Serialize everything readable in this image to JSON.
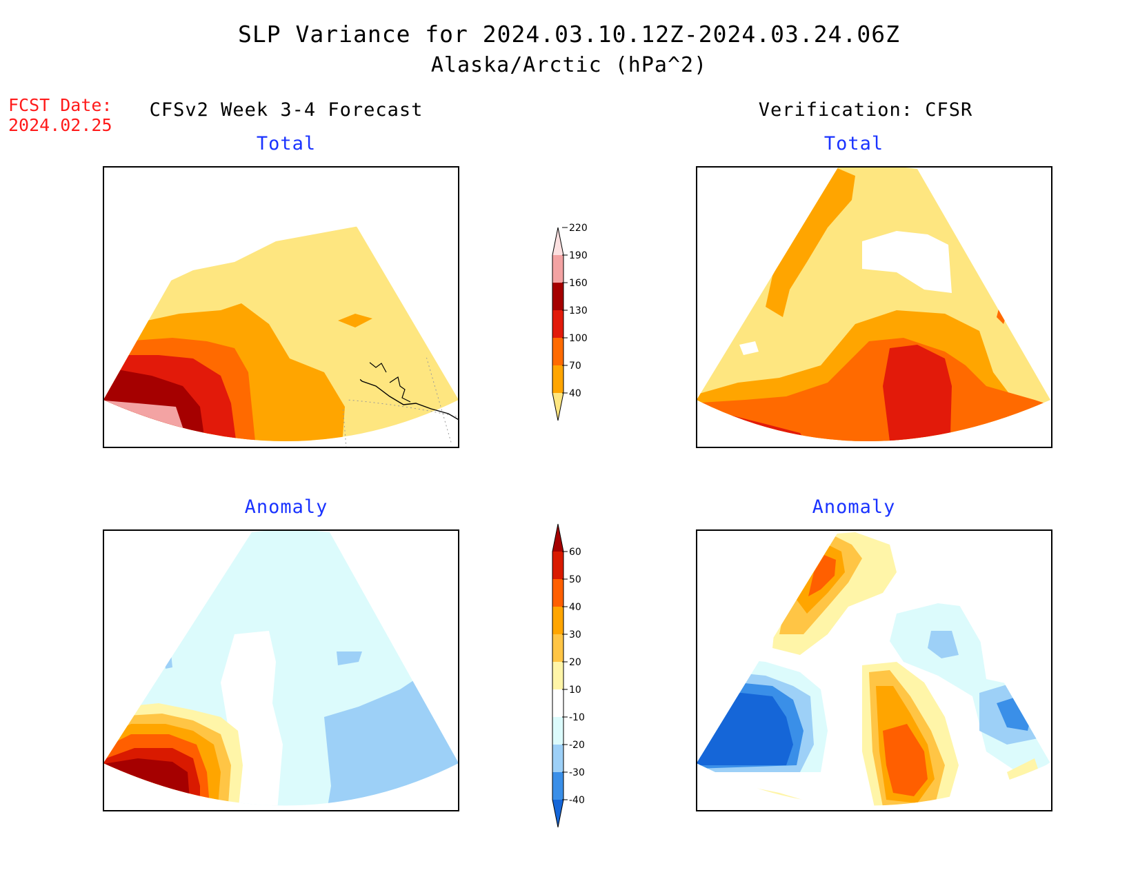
{
  "header": {
    "title": "SLP Variance for 2024.03.10.12Z-2024.03.24.06Z",
    "subtitle": "Alaska/Arctic (hPa^2)",
    "fcst_label": "FCST Date:",
    "fcst_date": "2024.02.25",
    "left_column": "CFSv2 Week 3-4 Forecast",
    "right_column": "Verification: CFSR"
  },
  "panels": {
    "fcst_total": "Total",
    "verif_total": "Total",
    "fcst_anomaly": "Anomaly",
    "verif_anomaly": "Anomaly"
  },
  "legends": {
    "total": {
      "ticks": [
        "40",
        "70",
        "100",
        "130",
        "160",
        "190",
        "220"
      ],
      "colors": [
        "#fee680",
        "#ffa500",
        "#ff6a00",
        "#e21a0a",
        "#a50000",
        "#f3a3a3",
        "#fce0e0"
      ]
    },
    "anomaly": {
      "ticks": [
        "-40",
        "-30",
        "-20",
        "-10",
        "10",
        "20",
        "30",
        "40",
        "50",
        "60"
      ],
      "colors": [
        "#1566d8",
        "#3a8fe8",
        "#9dd0f7",
        "#dcfbfc",
        "#ffffff",
        "#fff5a8",
        "#ffc545",
        "#ffa500",
        "#ff5f00",
        "#d91a00",
        "#a50000"
      ]
    }
  },
  "colors": {
    "title": "#000000",
    "fcst_date": "#ff1a1a",
    "panel_title": "#1a33ff"
  }
}
